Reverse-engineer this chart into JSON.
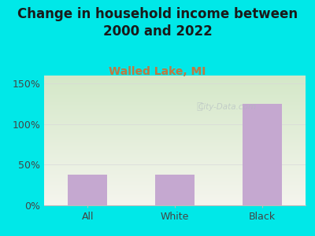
{
  "title": "Change in household income between\n2000 and 2022",
  "subtitle": "Walled Lake, MI",
  "categories": [
    "All",
    "White",
    "Black"
  ],
  "values": [
    38,
    38,
    125
  ],
  "bar_color": "#c5a8d0",
  "bg_color": "#00e8e8",
  "plot_bg_topleft": "#d4e8c8",
  "plot_bg_bottomright": "#f5f5ee",
  "title_color": "#1a1a1a",
  "subtitle_color": "#c07840",
  "axis_label_color": "#444444",
  "grid_color": "#d8d8d8",
  "ylim": [
    0,
    160
  ],
  "yticks": [
    0,
    50,
    100,
    150
  ],
  "ytick_labels": [
    "0%",
    "50%",
    "100%",
    "150%"
  ],
  "title_fontsize": 12,
  "subtitle_fontsize": 10,
  "tick_fontsize": 9,
  "watermark": "City-Data.com"
}
